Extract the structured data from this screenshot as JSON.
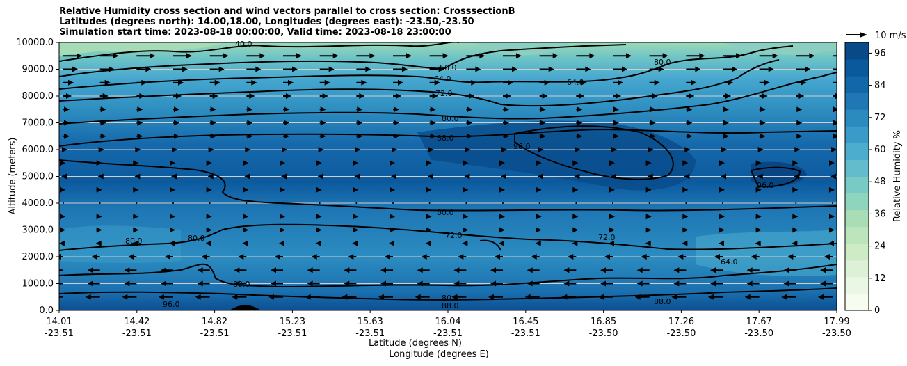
{
  "title_lines": [
    "Relative Humidity cross section and wind vectors parallel to cross section: CrosssectionB",
    "Latitudes (degrees north): 14.00,18.00, Longitudes (degrees east): -23.50,-23.50",
    "Simulation start time: 2023-08-18 00:00:00, Valid time: 2023-08-18 23:00:00"
  ],
  "chart_data": {
    "type": "heatmap",
    "title": "Relative Humidity cross section and wind vectors parallel to cross section: CrosssectionB",
    "xlabel": "Latitude (degrees N)",
    "xlabel2": "Longitude (degrees E)",
    "ylabel": "Altitude (meters)",
    "ylim": [
      0,
      10000
    ],
    "grid": "horizontal",
    "x_ticks": [
      {
        "lat": "14.01",
        "lon": "-23.51"
      },
      {
        "lat": "14.42",
        "lon": "-23.51"
      },
      {
        "lat": "14.82",
        "lon": "-23.51"
      },
      {
        "lat": "15.23",
        "lon": "-23.51"
      },
      {
        "lat": "15.63",
        "lon": "-23.51"
      },
      {
        "lat": "16.04",
        "lon": "-23.51"
      },
      {
        "lat": "16.45",
        "lon": "-23.51"
      },
      {
        "lat": "16.85",
        "lon": "-23.50"
      },
      {
        "lat": "17.26",
        "lon": "-23.50"
      },
      {
        "lat": "17.67",
        "lon": "-23.50"
      },
      {
        "lat": "17.99",
        "lon": "-23.50"
      }
    ],
    "y_ticks": [
      "0.0",
      "1000.0",
      "2000.0",
      "3000.0",
      "4000.0",
      "5000.0",
      "6000.0",
      "7000.0",
      "8000.0",
      "9000.0",
      "10000.0"
    ],
    "colorbar": {
      "label": "Relative Humidity %",
      "ticks": [
        "0",
        "12",
        "24",
        "36",
        "48",
        "60",
        "72",
        "84",
        "96"
      ],
      "range": [
        0,
        100
      ],
      "colors": [
        "#f7fcf0",
        "#eaf7e4",
        "#dcf1d6",
        "#cdebc5",
        "#bce5be",
        "#a8ddb5",
        "#8fd4bd",
        "#78cac4",
        "#62bccb",
        "#4cadce",
        "#3a9bc8",
        "#2b8bbe",
        "#1f78b4",
        "#1267a8",
        "#085a9c",
        "#084a88"
      ]
    },
    "contour_levels": [
      "40.0",
      "48.0",
      "56.0",
      "64.0",
      "72.0",
      "80.0",
      "88.0",
      "96.0"
    ],
    "wind_reference": "10 m/s",
    "wind_profile_mps": [
      {
        "altitude": 500,
        "u": -7
      },
      {
        "altitude": 1000,
        "u": -6
      },
      {
        "altitude": 1500,
        "u": -6
      },
      {
        "altitude": 2000,
        "u": -4
      },
      {
        "altitude": 2500,
        "u": -2
      },
      {
        "altitude": 3000,
        "u": 1
      },
      {
        "altitude": 3500,
        "u": 1
      },
      {
        "altitude": 4000,
        "u": 0
      },
      {
        "altitude": 4500,
        "u": 1
      },
      {
        "altitude": 5000,
        "u": -1
      },
      {
        "altitude": 5500,
        "u": 1
      },
      {
        "altitude": 6000,
        "u": 2
      },
      {
        "altitude": 6500,
        "u": 3
      },
      {
        "altitude": 7000,
        "u": 3
      },
      {
        "altitude": 7500,
        "u": 3
      },
      {
        "altitude": 8000,
        "u": 4
      },
      {
        "altitude": 8500,
        "u": 5
      },
      {
        "altitude": 9000,
        "u": 7
      },
      {
        "altitude": 9500,
        "u": 9
      }
    ]
  }
}
